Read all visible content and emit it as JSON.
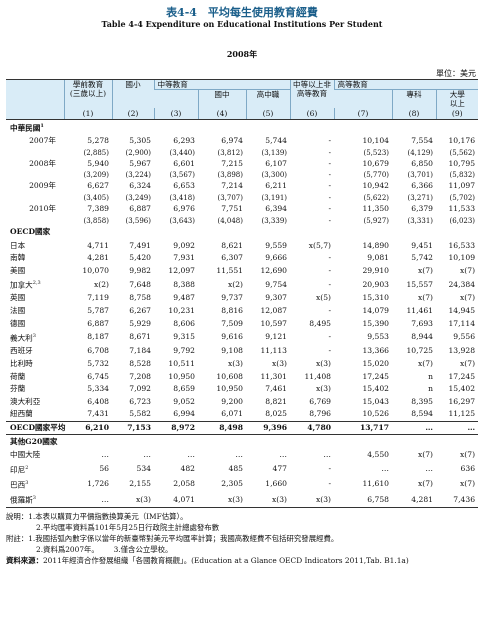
{
  "header": {
    "title": "表4-4　平均每生使用教育經費",
    "subtitle": "Table 4-4 Expenditure on Educational Institutions Per Student",
    "year": "2008年",
    "unit": "單位：美元"
  },
  "table": {
    "head": {
      "preschool": "學前教育",
      "preschool_note": "(三歲以上)",
      "primary": "國小",
      "secondary": "中等教育",
      "junior": "國中",
      "senior": "高中職",
      "post_secondary": "中等以上非高等教育",
      "tertiary": "高等教育",
      "junior_college": "專科",
      "university": "大學以上"
    },
    "col_numbers": [
      "(1)",
      "(2)",
      "(3)",
      "(4)",
      "(5)",
      "(6)",
      "(7)",
      "(8)",
      "(9)"
    ],
    "sections": [
      {
        "label": "中華民國",
        "sup": "1",
        "rows": [
          {
            "label": "2007年",
            "values": [
              "5,278",
              "5,305",
              "6,293",
              "6,974",
              "5,744",
              "-",
              "10,104",
              "7,554",
              "10,176"
            ],
            "sub_values": [
              "(2,885)",
              "(2,900)",
              "(3,440)",
              "(3,812)",
              "(3,139)",
              "-",
              "(5,523)",
              "(4,129)",
              "(5,562)"
            ]
          },
          {
            "label": "2008年",
            "values": [
              "5,940",
              "5,967",
              "6,601",
              "7,215",
              "6,107",
              "-",
              "10,679",
              "6,850",
              "10,795"
            ],
            "sub_values": [
              "(3,209)",
              "(3,224)",
              "(3,567)",
              "(3,898)",
              "(3,300)",
              "-",
              "(5,770)",
              "(3,701)",
              "(5,832)"
            ]
          },
          {
            "label": "2009年",
            "values": [
              "6,627",
              "6,324",
              "6,653",
              "7,214",
              "6,211",
              "-",
              "10,942",
              "6,366",
              "11,097"
            ],
            "sub_values": [
              "(3,405)",
              "(3,249)",
              "(3,418)",
              "(3,707)",
              "(3,191)",
              "-",
              "(5,622)",
              "(3,271)",
              "(5,702)"
            ]
          },
          {
            "label": "2010年",
            "values": [
              "7,389",
              "6,887",
              "6,976",
              "7,751",
              "6,394",
              "-",
              "11,350",
              "6,379",
              "11,533"
            ],
            "sub_values": [
              "(3,858)",
              "(3,596)",
              "(3,643)",
              "(4,048)",
              "(3,339)",
              "-",
              "(5,927)",
              "(3,331)",
              "(6,023)"
            ]
          }
        ]
      },
      {
        "label": "OECD國家",
        "rows": [
          {
            "label": "日本",
            "values": [
              "4,711",
              "7,491",
              "9,092",
              "8,621",
              "9,559",
              "x(5,7)",
              "14,890",
              "9,451",
              "16,533"
            ]
          },
          {
            "label": "南韓",
            "values": [
              "4,281",
              "5,420",
              "7,931",
              "6,307",
              "9,666",
              "-",
              "9,081",
              "5,742",
              "10,109"
            ]
          },
          {
            "label": "美國",
            "values": [
              "10,070",
              "9,982",
              "12,097",
              "11,551",
              "12,690",
              "-",
              "29,910",
              "x(7)",
              "x(7)"
            ]
          },
          {
            "label": "加拿大",
            "sup": "2,3",
            "values": [
              "x(2)",
              "7,648",
              "8,388",
              "x(2)",
              "9,754",
              "-",
              "20,903",
              "15,557",
              "24,384"
            ]
          },
          {
            "label": "英國",
            "values": [
              "7,119",
              "8,758",
              "9,487",
              "9,737",
              "9,307",
              "x(5)",
              "15,310",
              "x(7)",
              "x(7)"
            ]
          },
          {
            "label": "法國",
            "values": [
              "5,787",
              "6,267",
              "10,231",
              "8,816",
              "12,087",
              "-",
              "14,079",
              "11,461",
              "14,945"
            ]
          },
          {
            "label": "德國",
            "values": [
              "6,887",
              "5,929",
              "8,606",
              "7,509",
              "10,597",
              "8,495",
              "15,390",
              "7,693",
              "17,114"
            ]
          },
          {
            "label": "義大利",
            "sup": "3",
            "values": [
              "8,187",
              "8,671",
              "9,315",
              "9,616",
              "9,121",
              "-",
              "9,553",
              "8,944",
              "9,556"
            ]
          },
          {
            "label": "西班牙",
            "values": [
              "6,708",
              "7,184",
              "9,792",
              "9,108",
              "11,113",
              "-",
              "13,366",
              "10,725",
              "13,928"
            ]
          },
          {
            "label": "比利時",
            "values": [
              "5,732",
              "8,528",
              "10,511",
              "x(3)",
              "x(3)",
              "x(3)",
              "15,020",
              "x(7)",
              "x(7)"
            ]
          },
          {
            "label": "荷蘭",
            "values": [
              "6,745",
              "7,208",
              "10,950",
              "10,608",
              "11,301",
              "11,408",
              "17,245",
              "n",
              "17,245"
            ]
          },
          {
            "label": "芬蘭",
            "values": [
              "5,334",
              "7,092",
              "8,659",
              "10,950",
              "7,461",
              "x(3)",
              "15,402",
              "n",
              "15,402"
            ]
          },
          {
            "label": "澳大利亞",
            "values": [
              "6,408",
              "6,723",
              "9,052",
              "9,200",
              "8,821",
              "6,769",
              "15,043",
              "8,395",
              "16,297"
            ]
          },
          {
            "label": "紐西蘭",
            "values": [
              "7,431",
              "5,582",
              "6,994",
              "6,071",
              "8,025",
              "8,796",
              "10,526",
              "8,594",
              "11,125"
            ]
          },
          {
            "label": "OECD國家平均",
            "avg": true,
            "values": [
              "6,210",
              "7,153",
              "8,972",
              "8,498",
              "9,396",
              "4,780",
              "13,717",
              "…",
              "…"
            ]
          }
        ]
      },
      {
        "label": "其他G20國家",
        "rows": [
          {
            "label": "中國大陸",
            "values": [
              "…",
              "…",
              "…",
              "…",
              "…",
              "…",
              "4,550",
              "x(7)",
              "x(7)"
            ]
          },
          {
            "label": "印尼",
            "sup": "2",
            "values": [
              "56",
              "534",
              "482",
              "485",
              "477",
              "-",
              "…",
              "…",
              "636"
            ]
          },
          {
            "label": "巴西",
            "sup": "3",
            "values": [
              "1,726",
              "2,155",
              "2,058",
              "2,305",
              "1,660",
              "-",
              "11,610",
              "x(7)",
              "x(7)"
            ]
          },
          {
            "label": "俄羅斯",
            "sup": "3",
            "values": [
              "…",
              "x(3)",
              "4,071",
              "x(3)",
              "x(3)",
              "x(3)",
              "6,758",
              "4,281",
              "7,436"
            ]
          }
        ]
      }
    ]
  },
  "notes": {
    "explanation": {
      "label": "說明：",
      "items": [
        "1.本表以購買力平價指數換算美元（IMF估算）。",
        "2.平均匯率資料爲101年5月25日行政院主計總處發布數"
      ]
    },
    "remarks": {
      "label": "附註：",
      "items": [
        "1.我國括弧內數字係以當年的新臺幣對美元平均匯率計算；我國高教經費不包括研究發展經費。",
        "2.資料爲2007年。",
        "3.僅含公立學校。"
      ]
    },
    "source": {
      "label": "資料來源：",
      "text": "2011年經濟合作發展組織「各國教育概觀」。(Education at a Glance OECD Indicators 2011,Tab. B1.1a)"
    }
  }
}
